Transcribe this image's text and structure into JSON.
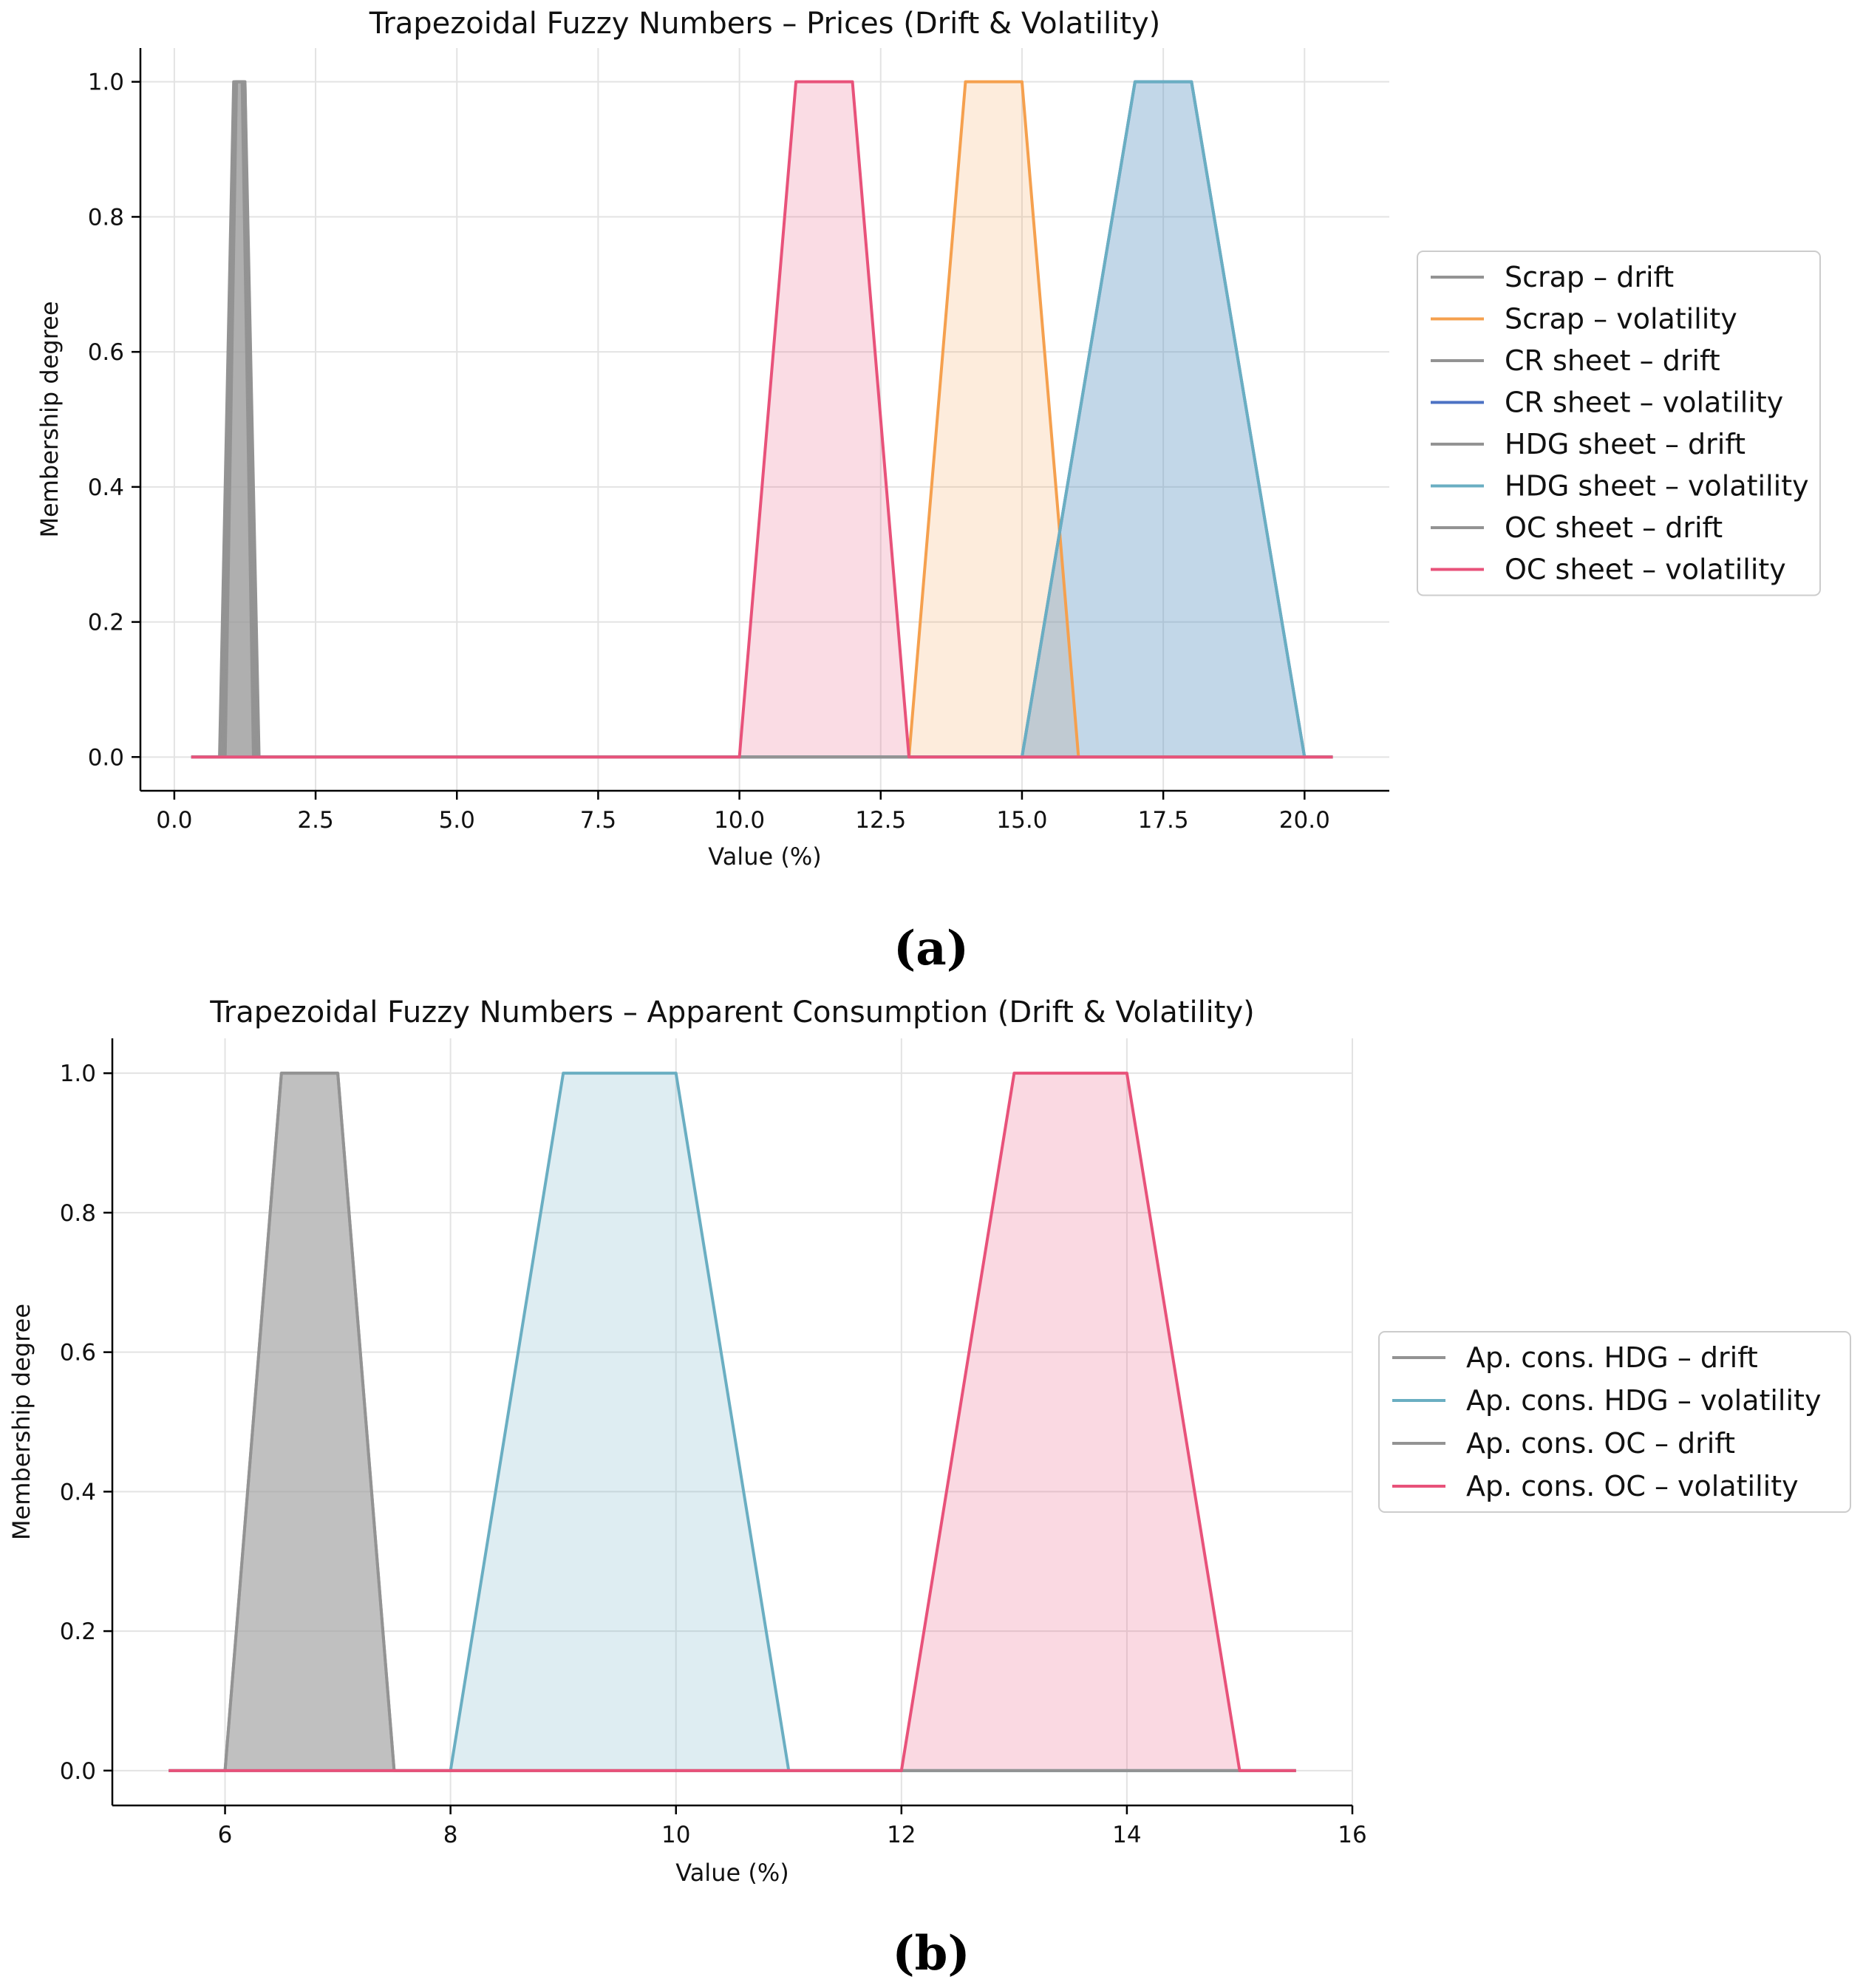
{
  "chart_data": [
    {
      "id": "a",
      "type": "line",
      "title": "Trapezoidal Fuzzy Numbers – Prices (Drift & Volatility)",
      "xlabel": "Value (%)",
      "ylabel": "Membership degree",
      "xlim": [
        -0.6,
        21.5
      ],
      "ylim": [
        -0.05,
        1.05
      ],
      "xticks": [
        0.0,
        2.5,
        5.0,
        7.5,
        10.0,
        12.5,
        15.0,
        17.5,
        20.0
      ],
      "xtick_labels": [
        "0.0",
        "2.5",
        "5.0",
        "7.5",
        "10.0",
        "12.5",
        "15.0",
        "17.5",
        "20.0"
      ],
      "yticks": [
        0.0,
        0.2,
        0.4,
        0.6,
        0.8,
        1.0
      ],
      "ytick_labels": [
        "0.0",
        "0.2",
        "0.4",
        "0.6",
        "0.8",
        "1.0"
      ],
      "grid": true,
      "legend_position": "right-outside",
      "caption": "(a)",
      "series": [
        {
          "name": "Scrap – drift",
          "color": "#939393",
          "fill": "#9e9e9e",
          "fill_opacity": 0.35,
          "x": [
            0.3,
            0.9,
            1.1,
            1.2,
            1.4,
            20.5
          ],
          "y": [
            0,
            0,
            1,
            1,
            0,
            0
          ]
        },
        {
          "name": "Scrap – volatility",
          "color": "#f5a04e",
          "fill": "#f5a04e",
          "fill_opacity": 0.2,
          "x": [
            0.3,
            13.0,
            14.0,
            15.0,
            16.0,
            20.5
          ],
          "y": [
            0,
            0,
            1,
            1,
            0,
            0
          ]
        },
        {
          "name": "CR sheet – drift",
          "color": "#939393",
          "fill": "#9e9e9e",
          "fill_opacity": 0.35,
          "x": [
            0.3,
            0.8,
            1.05,
            1.25,
            1.5,
            20.5
          ],
          "y": [
            0,
            0,
            1,
            1,
            0,
            0
          ]
        },
        {
          "name": "CR sheet – volatility",
          "color": "#4c72c4",
          "fill": "#4c72c4",
          "fill_opacity": 0.2,
          "x": [
            0.3,
            15.0,
            17.0,
            18.0,
            20.0,
            20.5
          ],
          "y": [
            0,
            0,
            1,
            1,
            0,
            0
          ]
        },
        {
          "name": "HDG sheet – drift",
          "color": "#939393",
          "fill": "#9e9e9e",
          "fill_opacity": 0.35,
          "x": [
            0.3,
            0.85,
            1.08,
            1.22,
            1.45,
            20.5
          ],
          "y": [
            0,
            0,
            1,
            1,
            0,
            0
          ]
        },
        {
          "name": "HDG sheet – volatility",
          "color": "#6aaec2",
          "fill": "#6aaec2",
          "fill_opacity": 0.22,
          "x": [
            0.3,
            15.0,
            17.0,
            18.0,
            20.0,
            20.5
          ],
          "y": [
            0,
            0,
            1,
            1,
            0,
            0
          ]
        },
        {
          "name": "OC sheet – drift",
          "color": "#939393",
          "fill": "#9e9e9e",
          "fill_opacity": 0.35,
          "x": [
            0.3,
            0.85,
            1.1,
            1.25,
            1.45,
            20.5
          ],
          "y": [
            0,
            0,
            1,
            1,
            0,
            0
          ]
        },
        {
          "name": "OC sheet – volatility",
          "color": "#e8527a",
          "fill": "#e8527a",
          "fill_opacity": 0.2,
          "x": [
            0.3,
            10.0,
            11.0,
            12.0,
            13.0,
            20.5
          ],
          "y": [
            0,
            0,
            1,
            1,
            0,
            0
          ]
        }
      ]
    },
    {
      "id": "b",
      "type": "line",
      "title": "Trapezoidal Fuzzy Numbers – Apparent Consumption (Drift & Volatility)",
      "xlabel": "Value (%)",
      "ylabel": "Membership degree",
      "xlim": [
        5.0,
        16.0
      ],
      "ylim": [
        -0.05,
        1.05
      ],
      "xticks": [
        6,
        8,
        10,
        12,
        14,
        16
      ],
      "xtick_labels": [
        "6",
        "8",
        "10",
        "12",
        "14",
        "16"
      ],
      "yticks": [
        0.0,
        0.2,
        0.4,
        0.6,
        0.8,
        1.0
      ],
      "ytick_labels": [
        "0.0",
        "0.2",
        "0.4",
        "0.6",
        "0.8",
        "1.0"
      ],
      "grid": true,
      "legend_position": "right-outside",
      "caption": "(b)",
      "series": [
        {
          "name": "Ap. cons. HDG – drift",
          "color": "#939393",
          "fill": "#9e9e9e",
          "fill_opacity": 0.4,
          "x": [
            5.5,
            6.0,
            6.5,
            7.0,
            7.5,
            15.5
          ],
          "y": [
            0,
            0,
            1,
            1,
            0,
            0
          ]
        },
        {
          "name": "Ap. cons. HDG – volatility",
          "color": "#6aaec2",
          "fill": "#6aaec2",
          "fill_opacity": 0.22,
          "x": [
            5.5,
            8.0,
            9.0,
            10.0,
            11.0,
            15.5
          ],
          "y": [
            0,
            0,
            1,
            1,
            0,
            0
          ]
        },
        {
          "name": "Ap. cons. OC – drift",
          "color": "#939393",
          "fill": "#9e9e9e",
          "fill_opacity": 0.4,
          "x": [
            5.5,
            6.0,
            6.5,
            7.0,
            7.5,
            15.5
          ],
          "y": [
            0,
            0,
            1,
            1,
            0,
            0
          ]
        },
        {
          "name": "Ap. cons. OC – volatility",
          "color": "#e8527a",
          "fill": "#e8527a",
          "fill_opacity": 0.22,
          "x": [
            5.5,
            12.0,
            13.0,
            14.0,
            15.0,
            15.5
          ],
          "y": [
            0,
            0,
            1,
            1,
            0,
            0
          ]
        }
      ]
    }
  ]
}
